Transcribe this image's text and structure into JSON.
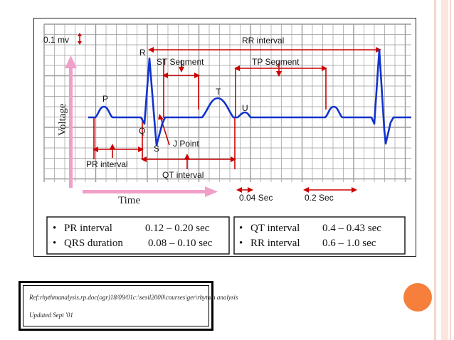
{
  "diagram": {
    "labels": {
      "voltage_scale": "0.1 mv",
      "rr_interval": "RR interval",
      "st_segment": "ST Segment",
      "tp_segment": "TP Segment",
      "r": "R",
      "p": "P",
      "t": "T",
      "u": "U",
      "q": "Q",
      "s": "S",
      "j_point": "J Point",
      "pr_interval": "PR interval",
      "qt_interval": "QT interval",
      "voltage_axis": "Voltage",
      "time_axis": "Time",
      "scale_004": "0.04 Sec",
      "scale_02": "0.2 Sec"
    },
    "colors": {
      "trace": "#1133cc",
      "annotation": "#cc0000",
      "axis_arrow": "#f0a0c8",
      "grid": "#9a9a9a"
    },
    "table_left": [
      {
        "bullet": "•",
        "label": "PR interval",
        "value": "0.12 – 0.20 sec"
      },
      {
        "bullet": "•",
        "label": "QRS duration",
        "value": "0.08 – 0.10 sec"
      }
    ],
    "table_right": [
      {
        "bullet": "•",
        "label": "QT interval",
        "value": "0.4 – 0.43 sec"
      },
      {
        "bullet": "•",
        "label": "RR interval",
        "value": "0.6 – 1.0 sec"
      }
    ]
  },
  "reference": {
    "line1": "Ref:rhythmanalysis.rp.doc(ogr)18/09/01c:\\sesil2000\\courses\\ger\\rhythm analysis",
    "line2": "Updated Sept '01"
  }
}
